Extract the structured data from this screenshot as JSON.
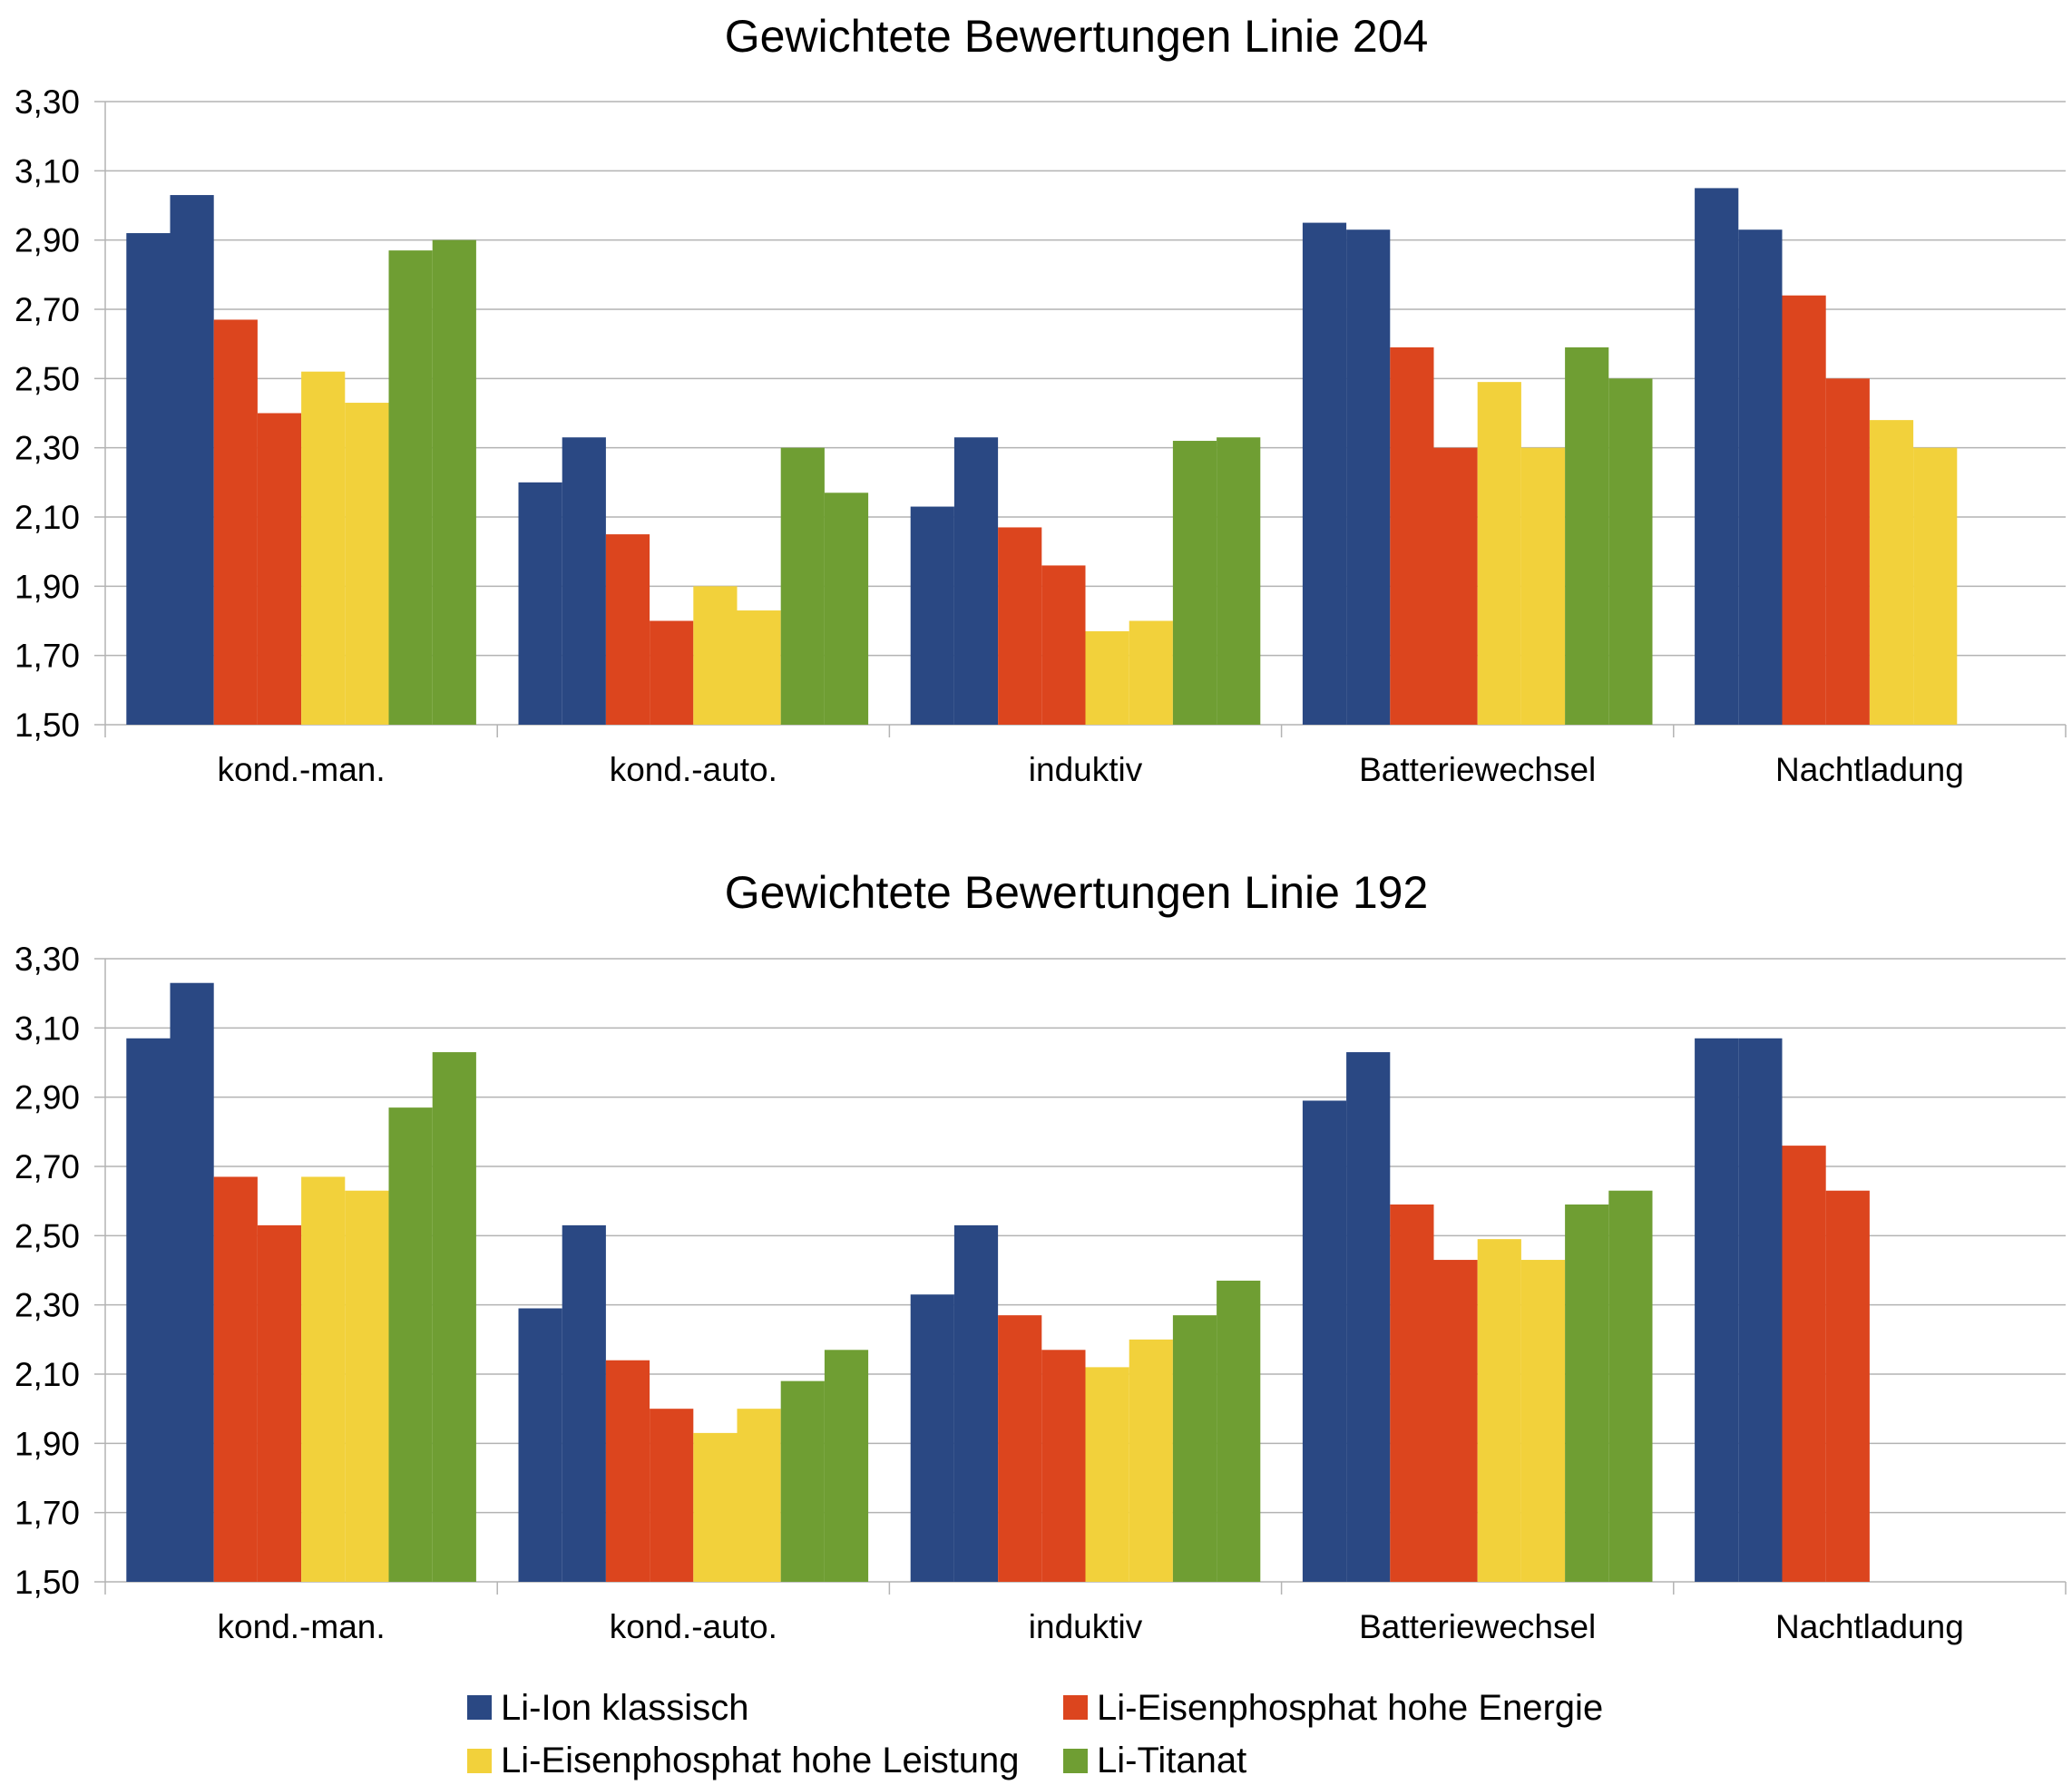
{
  "chart_data": [
    {
      "type": "bar",
      "title": "Gewichtete Bewertungen Linie 204",
      "categories": [
        "kond.-man.",
        "kond.-auto.",
        "induktiv",
        "Batteriewechsel",
        "Nachtladung"
      ],
      "ylim": [
        1.5,
        3.3
      ],
      "yticks": [
        "1,50",
        "1,70",
        "1,90",
        "2,10",
        "2,30",
        "2,50",
        "2,70",
        "2,90",
        "3,10",
        "3,30"
      ],
      "grid": true,
      "series": [
        {
          "name": "Li-Ion klassisch",
          "color": "#2a4883",
          "values": [
            [
              2.92,
              3.03
            ],
            [
              2.2,
              2.33
            ],
            [
              2.13,
              2.33
            ],
            [
              2.95,
              2.93
            ],
            [
              3.05,
              2.93
            ]
          ]
        },
        {
          "name": "Li-Eisenphosphat hohe Energie",
          "color": "#dc451e",
          "values": [
            [
              2.67,
              2.4
            ],
            [
              2.05,
              1.8
            ],
            [
              2.07,
              1.96
            ],
            [
              2.59,
              2.3
            ],
            [
              2.74,
              2.5
            ]
          ]
        },
        {
          "name": "Li-Eisenphosphat hohe Leistung",
          "color": "#f2d13b",
          "values": [
            [
              2.52,
              2.43
            ],
            [
              1.9,
              1.83
            ],
            [
              1.77,
              1.8
            ],
            [
              2.49,
              2.3
            ],
            [
              2.38,
              2.3
            ]
          ]
        },
        {
          "name": "Li-Titanat",
          "color": "#6f9e33",
          "values": [
            [
              2.87,
              2.9
            ],
            [
              2.3,
              2.17
            ],
            [
              2.32,
              2.33
            ],
            [
              2.59,
              2.5
            ],
            [
              null,
              null
            ]
          ]
        }
      ]
    },
    {
      "type": "bar",
      "title": "Gewichtete Bewertungen Linie 192",
      "categories": [
        "kond.-man.",
        "kond.-auto.",
        "induktiv",
        "Batteriewechsel",
        "Nachtladung"
      ],
      "ylim": [
        1.5,
        3.3
      ],
      "yticks": [
        "1,50",
        "1,70",
        "1,90",
        "2,10",
        "2,30",
        "2,50",
        "2,70",
        "2,90",
        "3,10",
        "3,30"
      ],
      "grid": true,
      "series": [
        {
          "name": "Li-Ion klassisch",
          "color": "#2a4883",
          "values": [
            [
              3.07,
              3.23
            ],
            [
              2.29,
              2.53
            ],
            [
              2.33,
              2.53
            ],
            [
              2.89,
              3.03
            ],
            [
              3.07,
              3.07
            ]
          ]
        },
        {
          "name": "Li-Eisenphosphat hohe Energie",
          "color": "#dc451e",
          "values": [
            [
              2.67,
              2.53
            ],
            [
              2.14,
              2.0
            ],
            [
              2.27,
              2.17
            ],
            [
              2.59,
              2.43
            ],
            [
              2.76,
              2.63
            ]
          ]
        },
        {
          "name": "Li-Eisenphosphat hohe Leistung",
          "color": "#f2d13b",
          "values": [
            [
              2.67,
              2.63
            ],
            [
              1.93,
              2.0
            ],
            [
              2.12,
              2.2
            ],
            [
              2.49,
              2.43
            ],
            [
              null,
              null
            ]
          ]
        },
        {
          "name": "Li-Titanat",
          "color": "#6f9e33",
          "values": [
            [
              2.87,
              3.03
            ],
            [
              2.08,
              2.17
            ],
            [
              2.27,
              2.37
            ],
            [
              2.59,
              2.63
            ],
            [
              null,
              null
            ]
          ]
        }
      ]
    }
  ],
  "legend": {
    "placement": "bottom",
    "items": [
      {
        "label": "Li-Ion klassisch",
        "color": "#2a4883"
      },
      {
        "label": "Li-Eisenphosphat hohe Energie",
        "color": "#dc451e"
      },
      {
        "label": "Li-Eisenphosphat hohe Leistung",
        "color": "#f2d13b"
      },
      {
        "label": "Li-Titanat",
        "color": "#6f9e33"
      }
    ]
  }
}
